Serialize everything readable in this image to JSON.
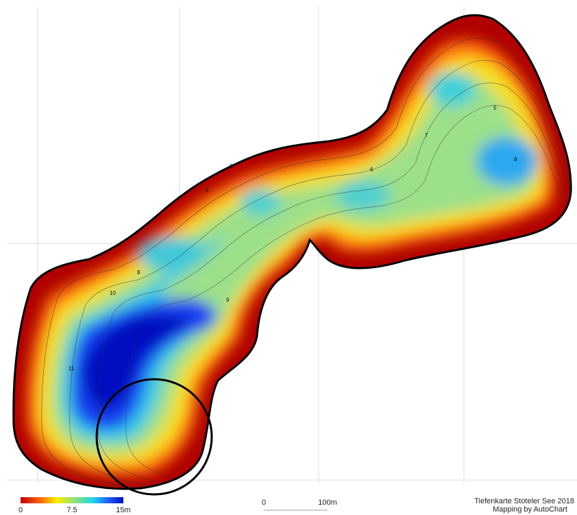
{
  "legend": {
    "labels": [
      "0",
      "7.5",
      "15m"
    ]
  },
  "scale_bar": {
    "labels": [
      "0",
      "100m"
    ]
  },
  "credits": {
    "title": "Tiefenkarte Stoteler See 2018",
    "subtitle": "Mapping by AutoChart"
  },
  "contour_labels": [
    "5",
    "6",
    "8",
    "10",
    "11",
    "9",
    "7",
    "6",
    "8",
    "5"
  ]
}
